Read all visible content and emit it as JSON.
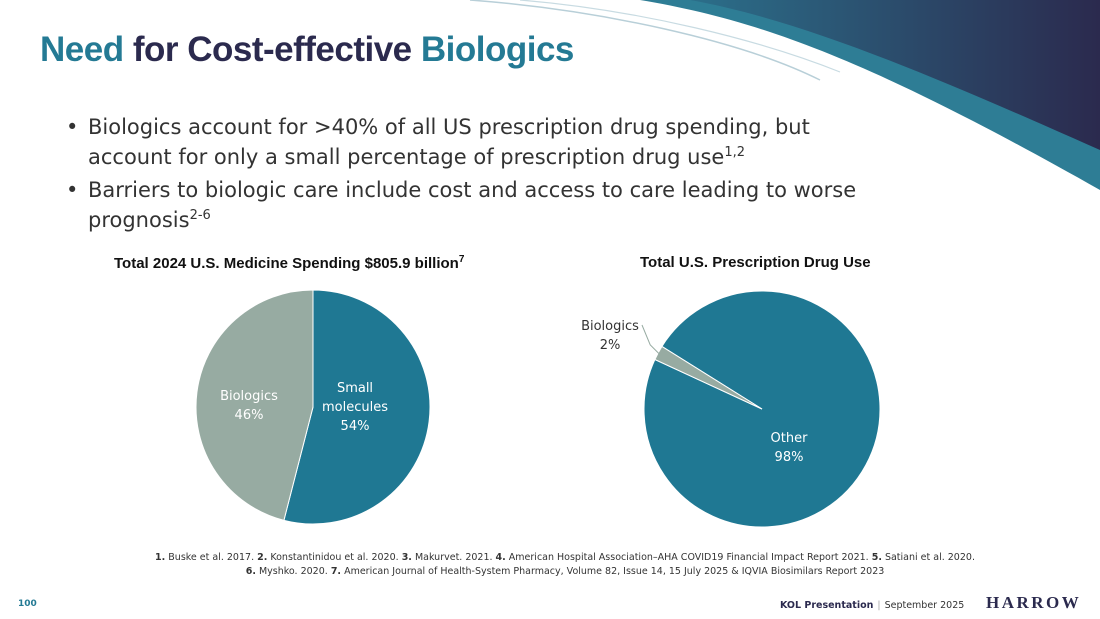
{
  "title": {
    "part1": "Need",
    "part2": " for Cost-effective ",
    "part3": "Biologics"
  },
  "bullets": [
    {
      "text": "Biologics account for >40% of all US prescription drug spending, but account for only a small percentage of prescription drug use",
      "sup": "1,2"
    },
    {
      "text": "Barriers to biologic care include cost and access to care leading to worse prognosis",
      "sup": "2-6"
    }
  ],
  "chart_data": [
    {
      "type": "pie",
      "title": "Total 2024 U.S. Medicine Spending $805.9 billion",
      "title_sup": "7",
      "slices": [
        {
          "label": "Small molecules",
          "label_lines": [
            "Small",
            "molecules"
          ],
          "value": 54,
          "display": "54%",
          "color": "#1f7893"
        },
        {
          "label": "Biologics",
          "label_lines": [
            "Biologics"
          ],
          "value": 46,
          "display": "46%",
          "color": "#97aba2"
        }
      ]
    },
    {
      "type": "pie",
      "title": "Total U.S. Prescription Drug Use",
      "title_sup": "",
      "slices": [
        {
          "label": "Other",
          "label_lines": [
            "Other"
          ],
          "value": 98,
          "display": "98%",
          "color": "#1f7893"
        },
        {
          "label": "Biologics",
          "label_lines": [
            "Biologics"
          ],
          "value": 2,
          "display": "2%",
          "color": "#97aba2"
        }
      ]
    }
  ],
  "references": [
    {
      "n": "1.",
      "t": " Buske et al. 2017. "
    },
    {
      "n": "2.",
      "t": " Konstantinidou et al. 2020. "
    },
    {
      "n": "3.",
      "t": " Makurvet. 2021. "
    },
    {
      "n": "4.",
      "t": " American Hospital Association–AHA COVID19 Financial Impact Report 2021. "
    },
    {
      "n": "5.",
      "t": " Satiani et al. 2020. "
    },
    {
      "n": "6.",
      "t": " Myshko. 2020. "
    },
    {
      "n": "7.",
      "t": " American Journal of Health-System Pharmacy, Volume 82, Issue 14, 15 July 2025 & IQVIA Biosimilars Report 2023"
    }
  ],
  "footer": {
    "page": "100",
    "presentation": "KOL Presentation",
    "date": "September 2025",
    "logo": "HARROW"
  },
  "colors": {
    "accent": "#247a94",
    "navy": "#2b2a4e"
  }
}
